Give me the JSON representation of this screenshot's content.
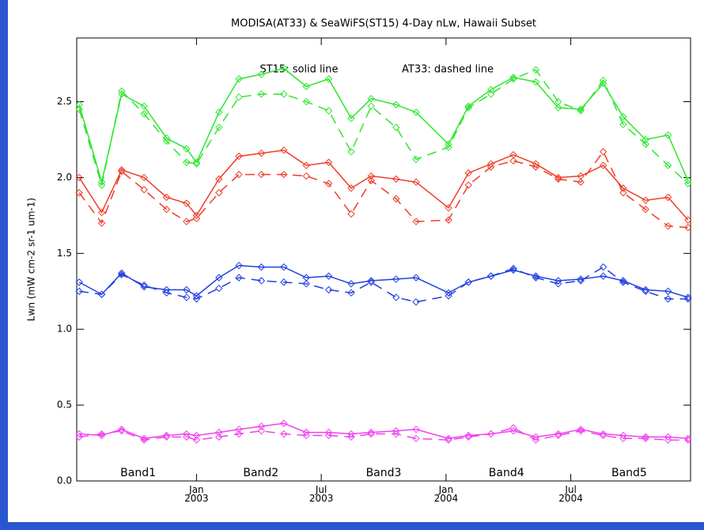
{
  "chart_data": {
    "type": "line",
    "title": "MODISA(AT33) & SeaWiFS(ST15) 4-Day nLw, Hawaii Subset",
    "annotations": [
      "ST15: solid line",
      "AT33: dashed line"
    ],
    "y_label": "Lwn (mW cm-2 sr-1 um-1)",
    "x": [
      2002.53,
      2002.62,
      2002.7,
      2002.79,
      2002.88,
      2002.96,
      2003.0,
      2003.09,
      2003.17,
      2003.26,
      2003.35,
      2003.44,
      2003.53,
      2003.62,
      2003.7,
      2003.8,
      2003.88,
      2004.01,
      2004.09,
      2004.18,
      2004.27,
      2004.36,
      2004.45,
      2004.54,
      2004.63,
      2004.71,
      2004.8,
      2004.89,
      2004.97
    ],
    "xlim": [
      2002.52,
      2004.98
    ],
    "xticks": [
      {
        "value": 2003.0,
        "label": "Jan\n2003"
      },
      {
        "value": 2003.5,
        "label": "Jul\n2003"
      },
      {
        "value": 2004.0,
        "label": "Jan\n2004"
      },
      {
        "value": 2004.5,
        "label": "Jul\n2004"
      }
    ],
    "ylim": [
      0,
      2.92
    ],
    "yticks": [
      {
        "value": 0,
        "label": "0.0"
      },
      0.5,
      {
        "value": 1,
        "label": "1.0"
      },
      1.5,
      {
        "value": 2,
        "label": "2.0"
      },
      2.5
    ],
    "series": [
      {
        "name": "Band1",
        "color": "#2ee62e",
        "values": [
          2.48,
          1.97,
          2.55,
          2.47,
          2.26,
          2.19,
          2.1,
          2.43,
          2.65,
          2.68,
          2.72,
          2.6,
          2.65,
          2.39,
          2.52,
          2.48,
          2.43,
          2.22,
          2.47,
          2.58,
          2.66,
          2.63,
          2.46,
          2.45,
          2.62,
          2.4,
          2.25,
          2.28,
          1.98
        ],
        "dashed_values": [
          2.45,
          1.95,
          2.57,
          2.42,
          2.24,
          2.1,
          2.09,
          2.33,
          2.53,
          2.55,
          2.55,
          2.5,
          2.44,
          2.17,
          2.47,
          2.33,
          2.12,
          2.2,
          2.46,
          2.55,
          2.65,
          2.71,
          2.5,
          2.44,
          2.64,
          2.35,
          2.22,
          2.08,
          1.96
        ]
      },
      {
        "name": "Band2",
        "color": "#f03c28",
        "values": [
          2.0,
          1.77,
          2.05,
          2.0,
          1.87,
          1.83,
          1.75,
          1.99,
          2.14,
          2.16,
          2.18,
          2.08,
          2.1,
          1.93,
          2.01,
          1.99,
          1.97,
          1.8,
          2.03,
          2.09,
          2.15,
          2.09,
          2.0,
          2.01,
          2.08,
          1.93,
          1.85,
          1.87,
          1.72
        ],
        "dashed_values": [
          1.9,
          1.7,
          2.04,
          1.92,
          1.79,
          1.71,
          1.73,
          1.9,
          2.02,
          2.02,
          2.02,
          2.01,
          1.96,
          1.76,
          1.98,
          1.86,
          1.71,
          1.72,
          1.95,
          2.07,
          2.11,
          2.07,
          1.99,
          1.97,
          2.17,
          1.9,
          1.79,
          1.68,
          1.67
        ]
      },
      {
        "name": "Band3",
        "color": "#2040e0",
        "values": [
          1.31,
          1.23,
          1.37,
          1.28,
          1.26,
          1.26,
          1.22,
          1.34,
          1.42,
          1.41,
          1.41,
          1.34,
          1.35,
          1.3,
          1.32,
          1.33,
          1.34,
          1.24,
          1.31,
          1.35,
          1.39,
          1.35,
          1.32,
          1.33,
          1.35,
          1.32,
          1.26,
          1.25,
          1.21
        ],
        "dashed_values": [
          1.25,
          1.23,
          1.36,
          1.29,
          1.24,
          1.21,
          1.2,
          1.27,
          1.34,
          1.32,
          1.31,
          1.3,
          1.26,
          1.24,
          1.31,
          1.21,
          1.18,
          1.22,
          1.31,
          1.35,
          1.4,
          1.34,
          1.3,
          1.32,
          1.41,
          1.31,
          1.25,
          1.2,
          1.2
        ]
      },
      {
        "name": "Band4",
        "color": "#aaaaaa",
        "values": [
          null,
          null,
          null,
          null,
          null,
          null,
          null,
          null,
          null,
          null,
          null,
          null,
          null,
          null,
          null,
          null,
          null,
          null,
          null,
          null,
          null,
          null,
          null,
          null,
          null,
          null,
          null,
          null,
          null
        ],
        "dashed_values": [
          null,
          null,
          null,
          null,
          null,
          null,
          null,
          null,
          null,
          null,
          null,
          null,
          null,
          null,
          null,
          null,
          null,
          null,
          null,
          null,
          null,
          null,
          null,
          null,
          null,
          null,
          null,
          null,
          null
        ]
      },
      {
        "name": "Band5",
        "color": "#f040f0",
        "values": [
          0.31,
          0.3,
          0.34,
          0.28,
          0.3,
          0.31,
          0.3,
          0.32,
          0.34,
          0.36,
          0.38,
          0.32,
          0.32,
          0.31,
          0.32,
          0.33,
          0.34,
          0.28,
          0.3,
          0.31,
          0.33,
          0.29,
          0.31,
          0.34,
          0.31,
          0.3,
          0.29,
          0.29,
          0.28
        ],
        "dashed_values": [
          0.29,
          0.31,
          0.33,
          0.27,
          0.29,
          0.29,
          0.27,
          0.29,
          0.31,
          0.33,
          0.31,
          0.3,
          0.3,
          0.29,
          0.31,
          0.31,
          0.28,
          0.27,
          0.29,
          0.31,
          0.35,
          0.27,
          0.3,
          0.33,
          0.3,
          0.28,
          0.28,
          0.27,
          0.27
        ]
      }
    ]
  }
}
